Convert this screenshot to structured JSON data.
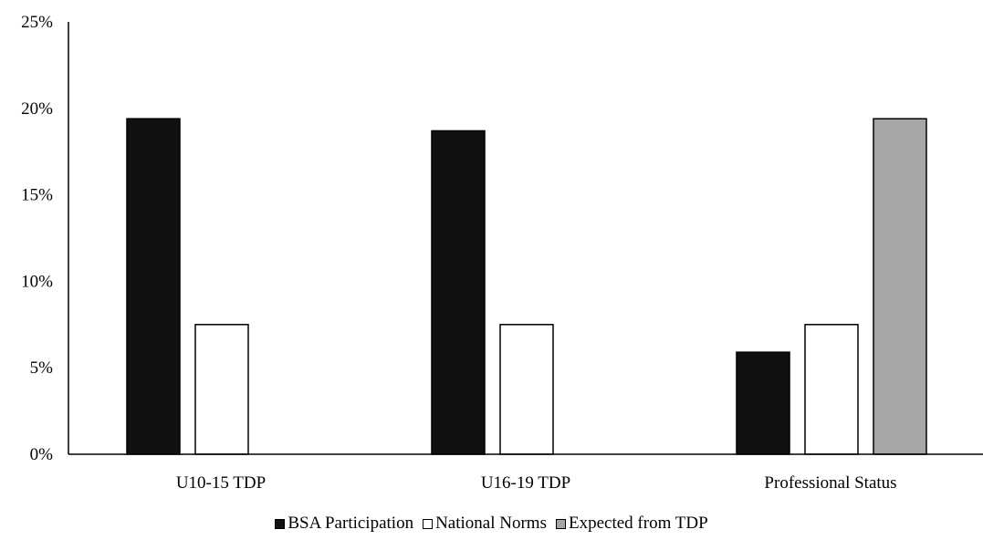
{
  "chart_data": {
    "type": "bar",
    "title": "",
    "xlabel": "",
    "ylabel": "",
    "categories": [
      "U10-15 TDP",
      "U16-19 TDP",
      "Professional Status"
    ],
    "series": [
      {
        "name": "BSA Participation",
        "color": "#111111",
        "values": [
          19.4,
          18.7,
          5.9
        ]
      },
      {
        "name": "National Norms",
        "color": "#ffffff",
        "values": [
          7.5,
          7.5,
          7.5
        ]
      },
      {
        "name": "Expected from TDP",
        "color": "#a6a6a6",
        "values": [
          null,
          null,
          19.4
        ]
      }
    ],
    "ylim": [
      0,
      25
    ],
    "yticks": [
      0,
      5,
      10,
      15,
      20,
      25
    ],
    "ytick_labels": [
      "0%",
      "5%",
      "10%",
      "15%",
      "20%",
      "25%"
    ],
    "grid": false,
    "legend_position": "bottom"
  }
}
